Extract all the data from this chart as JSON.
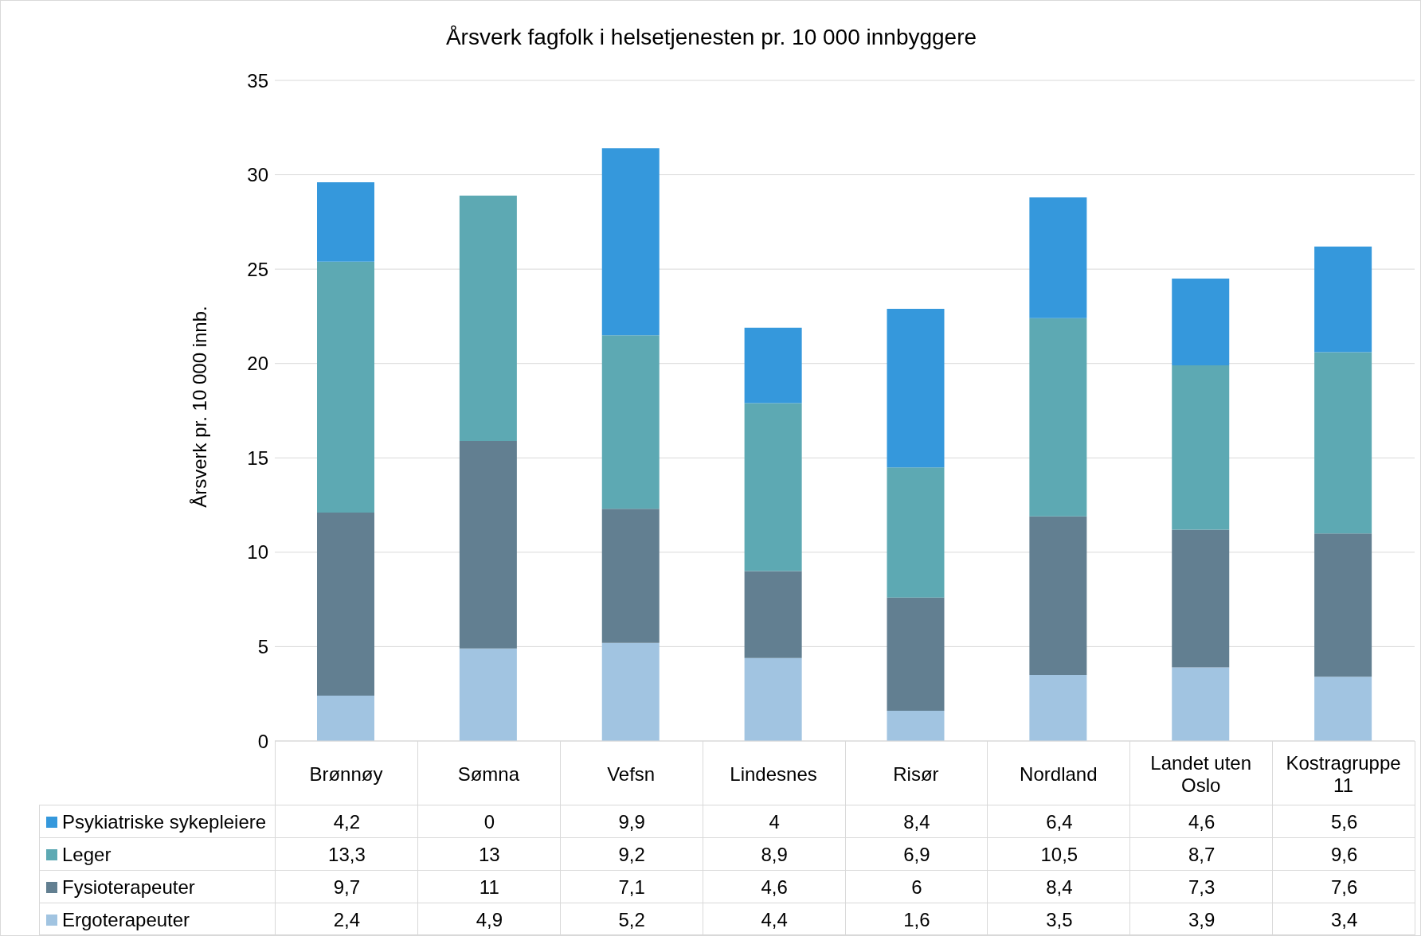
{
  "chart_data": {
    "type": "bar",
    "title": "Årsverk fagfolk i helsetjenesten pr. 10 000 innbyggere",
    "ylabel": "Årsverk pr. 10 000 innb.",
    "categories": [
      "Brønnøy",
      "Sømna",
      "Vefsn",
      "Lindesnes",
      "Risør",
      "Nordland",
      "Landet uten Oslo",
      "Kostragruppe 11"
    ],
    "stacked": true,
    "ylim": [
      0,
      35
    ],
    "yticks": [
      0,
      5,
      10,
      15,
      20,
      25,
      30,
      35
    ],
    "grid": "y",
    "legend": "bottom",
    "series": [
      {
        "name": "Ergoterapeuter",
        "color": "#a1c4e1",
        "values": [
          2.4,
          4.9,
          5.2,
          4.4,
          1.6,
          3.5,
          3.9,
          3.4
        ],
        "value_labels": [
          "2,4",
          "4,9",
          "5,2",
          "4,4",
          "1,6",
          "3,5",
          "3,9",
          "3,4"
        ]
      },
      {
        "name": "Fysioterapeuter",
        "color": "#627f91",
        "values": [
          9.7,
          11,
          7.1,
          4.6,
          6,
          8.4,
          7.3,
          7.6
        ],
        "value_labels": [
          "9,7",
          "11",
          "7,1",
          "4,6",
          "6",
          "8,4",
          "7,3",
          "7,6"
        ]
      },
      {
        "name": "Leger",
        "color": "#5da9b3",
        "values": [
          13.3,
          13,
          9.2,
          8.9,
          6.9,
          10.5,
          8.7,
          9.6
        ],
        "value_labels": [
          "13,3",
          "13",
          "9,2",
          "8,9",
          "6,9",
          "10,5",
          "8,7",
          "9,6"
        ]
      },
      {
        "name": "Psykiatriske sykepleiere",
        "color": "#3598dc",
        "values": [
          4.2,
          0,
          9.9,
          4,
          8.4,
          6.4,
          4.6,
          5.6
        ],
        "value_labels": [
          "4,2",
          "0",
          "9,9",
          "4",
          "8,4",
          "6,4",
          "4,6",
          "5,6"
        ]
      }
    ]
  }
}
